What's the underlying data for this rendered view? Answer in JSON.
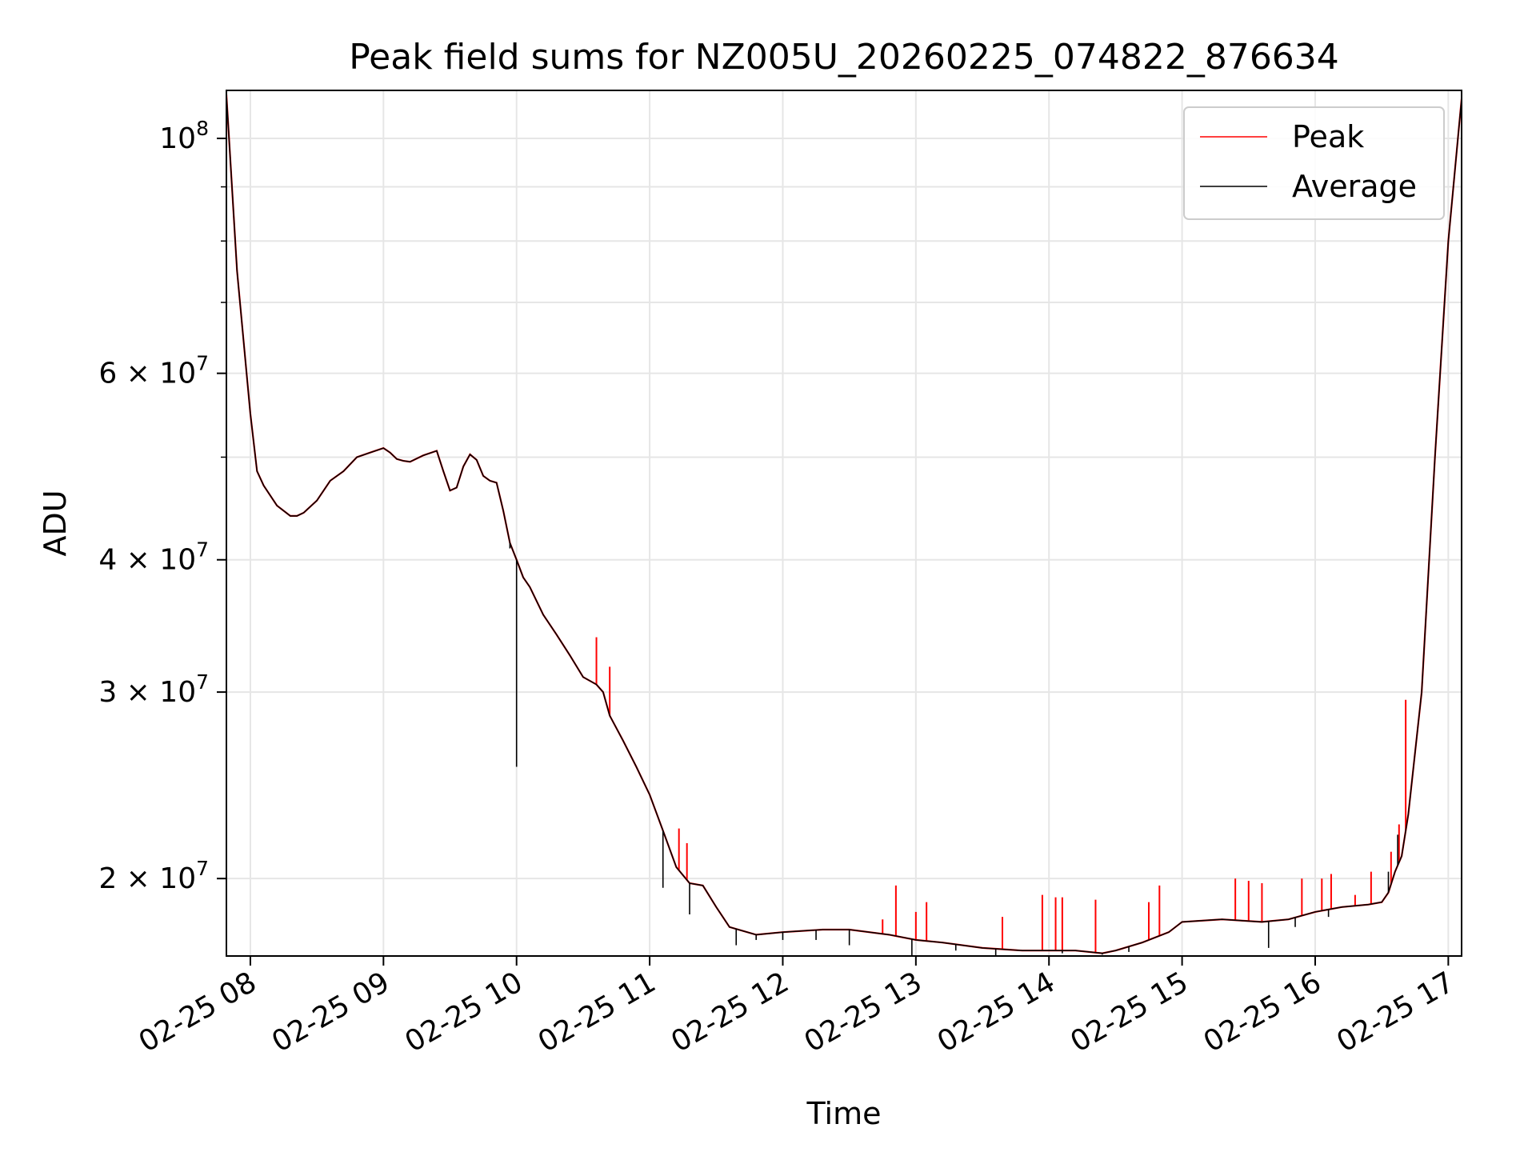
{
  "chart_data": {
    "type": "line",
    "title": "Peak field sums for NZ005U_20260225_074822_876634",
    "xlabel": "Time",
    "ylabel": "ADU",
    "yscale": "log",
    "ylim": [
      16900000,
      111000000
    ],
    "xlim_hours": [
      7.82,
      17.1
    ],
    "grid": true,
    "legend_position": "top-right",
    "x_tick_values": [
      8,
      9,
      10,
      11,
      12,
      13,
      14,
      15,
      16,
      17
    ],
    "x_tick_labels": [
      "02-25 08",
      "02-25 09",
      "02-25 10",
      "02-25 11",
      "02-25 12",
      "02-25 13",
      "02-25 14",
      "02-25 15",
      "02-25 16",
      "02-25 17"
    ],
    "y_major_ticks": [
      {
        "value": 100000000,
        "base": "10",
        "exp": "8"
      },
      {
        "value": 60000000,
        "base": "6 × 10",
        "exp": "7"
      },
      {
        "value": 40000000,
        "base": "4 × 10",
        "exp": "7"
      },
      {
        "value": 30000000,
        "base": "3 × 10",
        "exp": "7"
      },
      {
        "value": 20000000,
        "base": "2 × 10",
        "exp": "7"
      }
    ],
    "y_minor_ticks": [
      90000000,
      80000000,
      70000000,
      50000000
    ],
    "series": [
      {
        "name": "Peak",
        "color": "#ff0000",
        "spikes": [
          [
            10.6,
            33800000
          ],
          [
            10.7,
            31700000
          ],
          [
            11.22,
            22300000
          ],
          [
            11.28,
            21600000
          ],
          [
            12.75,
            18300000
          ],
          [
            12.85,
            19700000
          ],
          [
            13.0,
            18600000
          ],
          [
            13.08,
            19000000
          ],
          [
            13.65,
            18400000
          ],
          [
            13.95,
            19300000
          ],
          [
            14.05,
            19200000
          ],
          [
            14.1,
            19200000
          ],
          [
            14.35,
            19100000
          ],
          [
            14.75,
            19000000
          ],
          [
            14.83,
            19700000
          ],
          [
            15.4,
            20000000
          ],
          [
            15.5,
            19900000
          ],
          [
            15.6,
            19800000
          ],
          [
            15.9,
            20000000
          ],
          [
            16.05,
            20000000
          ],
          [
            16.12,
            20200000
          ],
          [
            16.3,
            19300000
          ],
          [
            16.42,
            20300000
          ],
          [
            16.57,
            21200000
          ],
          [
            16.63,
            22500000
          ],
          [
            16.68,
            29500000
          ]
        ]
      },
      {
        "name": "Average",
        "color": "#000000",
        "x": [
          7.82,
          7.9,
          8.0,
          8.05,
          8.1,
          8.2,
          8.3,
          8.35,
          8.4,
          8.5,
          8.55,
          8.6,
          8.7,
          8.8,
          8.9,
          9.0,
          9.05,
          9.1,
          9.15,
          9.2,
          9.3,
          9.4,
          9.45,
          9.5,
          9.55,
          9.6,
          9.65,
          9.7,
          9.75,
          9.8,
          9.85,
          9.9,
          9.95,
          10.0,
          10.05,
          10.1,
          10.2,
          10.3,
          10.4,
          10.5,
          10.6,
          10.65,
          10.7,
          10.8,
          10.9,
          11.0,
          11.1,
          11.2,
          11.3,
          11.4,
          11.5,
          11.6,
          11.8,
          12.0,
          12.3,
          12.5,
          12.8,
          13.0,
          13.2,
          13.5,
          13.8,
          14.0,
          14.2,
          14.4,
          14.5,
          14.7,
          14.9,
          15.0,
          15.3,
          15.6,
          15.8,
          16.0,
          16.2,
          16.4,
          16.5,
          16.55,
          16.6,
          16.65,
          16.7,
          16.8,
          16.9,
          17.0,
          17.1
        ],
        "values": [
          110000000,
          75000000,
          55000000,
          48500000,
          47000000,
          45000000,
          44000000,
          44000000,
          44300000,
          45500000,
          46500000,
          47500000,
          48500000,
          50000000,
          50500000,
          51000000,
          50500000,
          49800000,
          49600000,
          49500000,
          50200000,
          50700000,
          48500000,
          46500000,
          46800000,
          49000000,
          50300000,
          49700000,
          48000000,
          47500000,
          47300000,
          44500000,
          41500000,
          40000000,
          38500000,
          37700000,
          35500000,
          34000000,
          32500000,
          31000000,
          30500000,
          30000000,
          28500000,
          27000000,
          25500000,
          24000000,
          22200000,
          20500000,
          19800000,
          19700000,
          18800000,
          18000000,
          17700000,
          17800000,
          17900000,
          17900000,
          17700000,
          17500000,
          17400000,
          17200000,
          17100000,
          17100000,
          17100000,
          17000000,
          17100000,
          17400000,
          17800000,
          18200000,
          18300000,
          18200000,
          18300000,
          18600000,
          18800000,
          18900000,
          19000000,
          19400000,
          20300000,
          21000000,
          23000000,
          30000000,
          50000000,
          80000000,
          109000000
        ],
        "dips": [
          [
            9.95,
            41000000
          ],
          [
            10.0,
            25500000
          ],
          [
            11.1,
            19600000
          ],
          [
            11.3,
            18500000
          ],
          [
            11.65,
            17300000
          ],
          [
            11.8,
            17500000
          ],
          [
            12.0,
            17500000
          ],
          [
            12.25,
            17500000
          ],
          [
            12.5,
            17300000
          ],
          [
            12.97,
            16800000
          ],
          [
            13.3,
            17100000
          ],
          [
            13.6,
            16900000
          ],
          [
            14.1,
            17000000
          ],
          [
            14.4,
            16950000
          ],
          [
            14.6,
            17050000
          ],
          [
            15.65,
            17200000
          ],
          [
            15.85,
            18000000
          ],
          [
            16.1,
            18400000
          ],
          [
            16.55,
            20300000
          ],
          [
            16.62,
            22000000
          ]
        ]
      }
    ]
  }
}
